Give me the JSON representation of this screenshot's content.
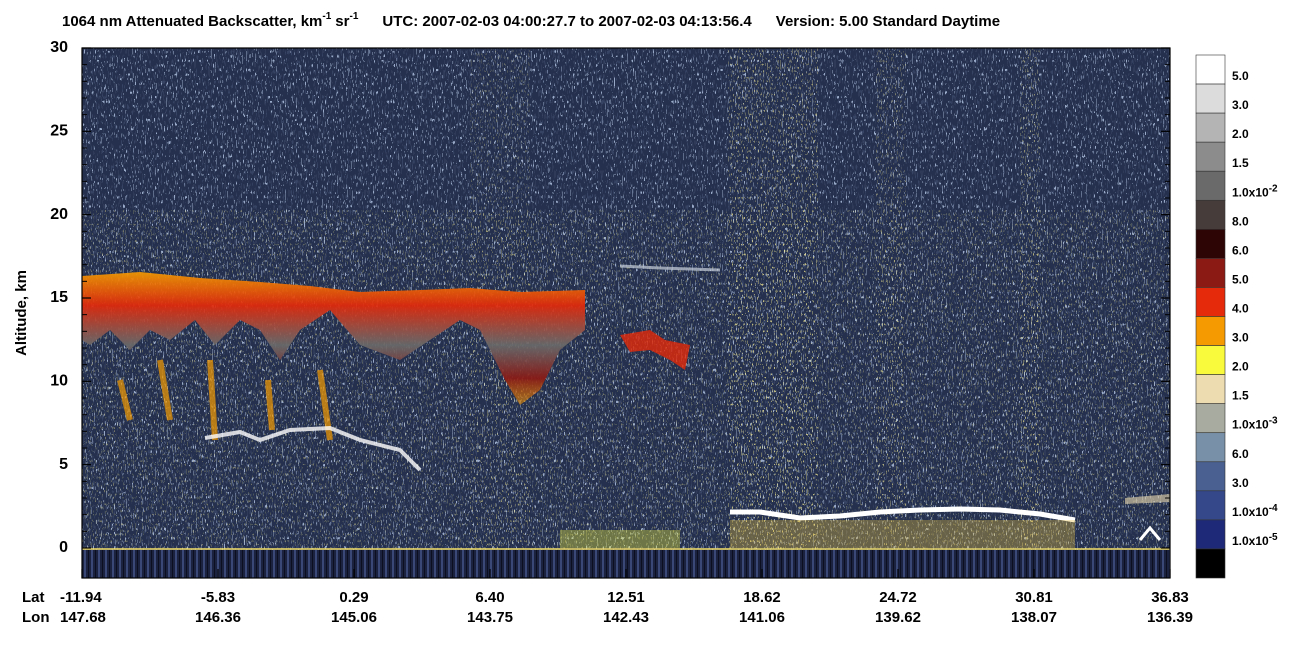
{
  "chart_data": {
    "type": "curtain",
    "title": {
      "product": "1064 nm Attenuated Backscatter, km",
      "unit_exp1": "-1",
      "unit2": "sr",
      "unit_exp2": "-1",
      "utc": "UTC:  2007-02-03 04:00:27.7  to  2007-02-03 04:13:56.4",
      "version": "Version: 5.00  Standard  Daytime"
    },
    "y_label": "Altitude, km",
    "ylim": [
      -1.8,
      30
    ],
    "yticks": [
      0,
      5,
      10,
      15,
      20,
      25,
      30
    ],
    "x_rows": [
      "Lat",
      "Lon"
    ],
    "lat": [
      "-11.94",
      "-5.83",
      "0.29",
      "6.40",
      "12.51",
      "18.62",
      "24.72",
      "30.81",
      "36.83"
    ],
    "lon": [
      "147.68",
      "146.36",
      "145.06",
      "143.75",
      "142.43",
      "141.06",
      "139.62",
      "138.07",
      "136.39"
    ],
    "colorbar": {
      "colors": [
        "#ffffff",
        "#dcdcdc",
        "#b4b4b4",
        "#8c8c8c",
        "#6a6a6a",
        "#463c3a",
        "#2d0505",
        "#8c1a14",
        "#e42a0a",
        "#f59a00",
        "#fafa3c",
        "#ecdcb0",
        "#a8aca0",
        "#7890a8",
        "#4a6090",
        "#34488a",
        "#1e2a78",
        "#000000"
      ],
      "labels": [
        {
          "text": "5.0"
        },
        {
          "text": "3.0"
        },
        {
          "text": "2.0"
        },
        {
          "text": "1.5"
        },
        {
          "text": "1.0x10",
          "exp": "-2"
        },
        {
          "text": "8.0"
        },
        {
          "text": "6.0"
        },
        {
          "text": "5.0"
        },
        {
          "text": "4.0"
        },
        {
          "text": "3.0"
        },
        {
          "text": "2.0"
        },
        {
          "text": "1.5"
        },
        {
          "text": "1.0x10",
          "exp": "-3"
        },
        {
          "text": "6.0"
        },
        {
          "text": "3.0"
        },
        {
          "text": "1.0x10",
          "exp": "-4"
        },
        {
          "text": "1.0x10",
          "exp": "-5"
        }
      ]
    }
  }
}
